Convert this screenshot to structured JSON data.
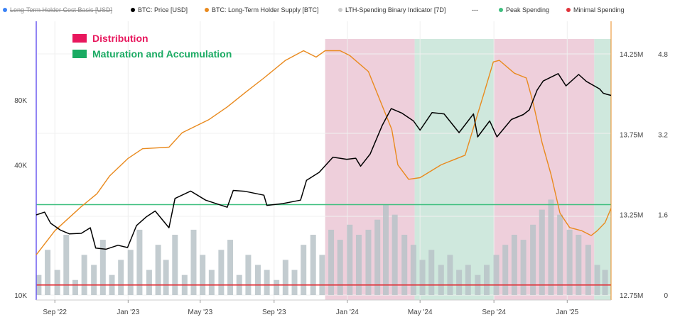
{
  "legend": {
    "items": [
      {
        "label": "Long-Term Holder Cost Basis [USD]",
        "color": "#3b82f6",
        "struck": true
      },
      {
        "label": "BTC: Price [USD]",
        "color": "#000000",
        "struck": false
      },
      {
        "label": "BTC: Long-Term Holder Supply [BTC]",
        "color": "#e98a1e",
        "struck": false
      },
      {
        "label": "LTH-Spending Binary Indicator [7D]",
        "color": "#cccccc",
        "struck": false
      },
      {
        "label": "---",
        "color": "",
        "struck": false
      },
      {
        "label": "Peak Spending",
        "color": "#3fbf7f",
        "struck": false
      },
      {
        "label": "Minimal Spending",
        "color": "#e0343b",
        "struck": false
      }
    ]
  },
  "annotations": {
    "distribution": {
      "label": "Distribution",
      "color": "#e8175d"
    },
    "maturation": {
      "label": "Maturation and Accumulation",
      "color": "#1aab63"
    }
  },
  "colors": {
    "price": "#000000",
    "supply": "#e98a1e",
    "spending_bars": "#b9c3c8",
    "distribution_shade": "#e8bfcf",
    "accumulation_shade": "#bfe0d2",
    "peak_line": "#3fbf7f",
    "minimal_line": "#e0343b",
    "left_axis_line": "#6d5cf0",
    "right_axis_line": "#e98a1e"
  },
  "chart_data": {
    "type": "line",
    "x_range": [
      "2022-08-01",
      "2025-03-15"
    ],
    "x_ticks": [
      {
        "date": "2022-09-01",
        "label": "Sep '22"
      },
      {
        "date": "2023-01-01",
        "label": "Jan '23"
      },
      {
        "date": "2023-05-01",
        "label": "May '23"
      },
      {
        "date": "2023-09-01",
        "label": "Sep '23"
      },
      {
        "date": "2024-01-01",
        "label": "Jan '24"
      },
      {
        "date": "2024-05-01",
        "label": "May '24"
      },
      {
        "date": "2024-09-01",
        "label": "Sep '24"
      },
      {
        "date": "2025-01-01",
        "label": "Jan '25"
      }
    ],
    "left_axis": {
      "scale": "log",
      "ticks": [
        {
          "value": 10000,
          "label": "10K"
        },
        {
          "value": 40000,
          "label": "40K"
        },
        {
          "value": 80000,
          "label": "80K"
        }
      ]
    },
    "right_axis_supply": {
      "ticks": [
        {
          "value": 12750000,
          "label": "12.75M"
        },
        {
          "value": 13250000,
          "label": "13.25M"
        },
        {
          "value": 13750000,
          "label": "13.75M"
        },
        {
          "value": 14250000,
          "label": "14.25M"
        }
      ]
    },
    "right_axis_indicator": {
      "ticks": [
        {
          "value": 0,
          "label": "0"
        },
        {
          "value": 1.6,
          "label": "1.6"
        },
        {
          "value": 3.2,
          "label": "3.2"
        },
        {
          "value": 4.8,
          "label": "4.8"
        }
      ]
    },
    "regions": [
      {
        "type": "distribution",
        "start": "2023-11-25",
        "end": "2024-04-22"
      },
      {
        "type": "accumulation",
        "start": "2024-04-22",
        "end": "2024-09-01"
      },
      {
        "type": "distribution",
        "start": "2024-09-01",
        "end": "2025-02-15"
      },
      {
        "type": "accumulation",
        "start": "2025-02-15",
        "end": "2025-03-15"
      }
    ],
    "series": [
      {
        "name": "BTC: Price [USD]",
        "axis": "left",
        "points": [
          [
            "2022-08-01",
            23500
          ],
          [
            "2022-08-15",
            24200
          ],
          [
            "2022-08-25",
            21500
          ],
          [
            "2022-09-10",
            20000
          ],
          [
            "2022-09-25",
            19200
          ],
          [
            "2022-10-15",
            19300
          ],
          [
            "2022-10-30",
            20500
          ],
          [
            "2022-11-08",
            16500
          ],
          [
            "2022-11-25",
            16300
          ],
          [
            "2022-12-15",
            17000
          ],
          [
            "2022-12-31",
            16600
          ],
          [
            "2023-01-15",
            21000
          ],
          [
            "2023-01-31",
            23000
          ],
          [
            "2023-02-15",
            24500
          ],
          [
            "2023-03-10",
            20500
          ],
          [
            "2023-03-20",
            28000
          ],
          [
            "2023-04-15",
            30300
          ],
          [
            "2023-05-10",
            27500
          ],
          [
            "2023-06-15",
            25500
          ],
          [
            "2023-06-25",
            30500
          ],
          [
            "2023-07-15",
            30200
          ],
          [
            "2023-08-15",
            29000
          ],
          [
            "2023-08-20",
            26000
          ],
          [
            "2023-09-15",
            26500
          ],
          [
            "2023-10-15",
            27500
          ],
          [
            "2023-10-25",
            34000
          ],
          [
            "2023-11-15",
            37000
          ],
          [
            "2023-12-08",
            43500
          ],
          [
            "2023-12-31",
            42500
          ],
          [
            "2024-01-15",
            43000
          ],
          [
            "2024-01-23",
            39500
          ],
          [
            "2024-02-08",
            45000
          ],
          [
            "2024-02-28",
            61000
          ],
          [
            "2024-03-14",
            73000
          ],
          [
            "2024-04-01",
            69500
          ],
          [
            "2024-04-20",
            64000
          ],
          [
            "2024-05-01",
            58000
          ],
          [
            "2024-05-21",
            70000
          ],
          [
            "2024-06-10",
            69000
          ],
          [
            "2024-07-05",
            56500
          ],
          [
            "2024-07-29",
            69000
          ],
          [
            "2024-08-05",
            54000
          ],
          [
            "2024-08-25",
            64000
          ],
          [
            "2024-09-06",
            54000
          ],
          [
            "2024-09-30",
            65000
          ],
          [
            "2024-10-20",
            68500
          ],
          [
            "2024-10-30",
            72000
          ],
          [
            "2024-11-12",
            89000
          ],
          [
            "2024-11-22",
            98000
          ],
          [
            "2024-12-17",
            106000
          ],
          [
            "2024-12-30",
            93000
          ],
          [
            "2025-01-20",
            105000
          ],
          [
            "2025-02-02",
            97500
          ],
          [
            "2025-02-24",
            90000
          ],
          [
            "2025-03-02",
            86000
          ],
          [
            "2025-03-08",
            85000
          ],
          [
            "2025-03-15",
            84000
          ]
        ]
      },
      {
        "name": "BTC: Long-Term Holder Supply [BTC]",
        "axis": "right",
        "points": [
          [
            "2022-08-01",
            13000000
          ],
          [
            "2022-09-01",
            13150000
          ],
          [
            "2022-10-15",
            13300000
          ],
          [
            "2022-11-10",
            13380000
          ],
          [
            "2022-12-01",
            13490000
          ],
          [
            "2023-01-01",
            13600000
          ],
          [
            "2023-01-25",
            13660000
          ],
          [
            "2023-03-10",
            13670000
          ],
          [
            "2023-04-01",
            13760000
          ],
          [
            "2023-05-15",
            13840000
          ],
          [
            "2023-06-15",
            13920000
          ],
          [
            "2023-07-15",
            14010000
          ],
          [
            "2023-08-15",
            14100000
          ],
          [
            "2023-09-20",
            14210000
          ],
          [
            "2023-10-20",
            14270000
          ],
          [
            "2023-11-10",
            14230000
          ],
          [
            "2023-11-25",
            14270000
          ],
          [
            "2023-12-20",
            14270000
          ],
          [
            "2024-01-05",
            14240000
          ],
          [
            "2024-02-05",
            14140000
          ],
          [
            "2024-03-15",
            13780000
          ],
          [
            "2024-03-25",
            13560000
          ],
          [
            "2024-04-12",
            13470000
          ],
          [
            "2024-05-01",
            13480000
          ],
          [
            "2024-06-05",
            13560000
          ],
          [
            "2024-07-15",
            13620000
          ],
          [
            "2024-08-15",
            14000000
          ],
          [
            "2024-08-31",
            14200000
          ],
          [
            "2024-09-10",
            14210000
          ],
          [
            "2024-10-05",
            14130000
          ],
          [
            "2024-10-25",
            14100000
          ],
          [
            "2024-11-05",
            13950000
          ],
          [
            "2024-11-20",
            13700000
          ],
          [
            "2024-12-05",
            13500000
          ],
          [
            "2024-12-20",
            13260000
          ],
          [
            "2025-01-05",
            13170000
          ],
          [
            "2025-01-25",
            13150000
          ],
          [
            "2025-02-10",
            13120000
          ],
          [
            "2025-02-20",
            13150000
          ],
          [
            "2025-03-05",
            13200000
          ],
          [
            "2025-03-15",
            13290000
          ]
        ]
      },
      {
        "name": "LTH-Spending Binary Indicator [7D]",
        "axis": "right_indicator",
        "bars": [
          [
            "2022-08-05",
            0.4
          ],
          [
            "2022-08-20",
            0.9
          ],
          [
            "2022-09-05",
            0.5
          ],
          [
            "2022-09-20",
            1.2
          ],
          [
            "2022-10-05",
            0.3
          ],
          [
            "2022-10-20",
            0.8
          ],
          [
            "2022-11-05",
            0.6
          ],
          [
            "2022-11-20",
            1.1
          ],
          [
            "2022-12-05",
            0.4
          ],
          [
            "2022-12-20",
            0.7
          ],
          [
            "2023-01-05",
            0.9
          ],
          [
            "2023-01-20",
            1.3
          ],
          [
            "2023-02-05",
            0.5
          ],
          [
            "2023-02-20",
            1.0
          ],
          [
            "2023-03-05",
            0.7
          ],
          [
            "2023-03-20",
            1.2
          ],
          [
            "2023-04-05",
            0.4
          ],
          [
            "2023-04-20",
            1.3
          ],
          [
            "2023-05-05",
            0.8
          ],
          [
            "2023-05-20",
            0.5
          ],
          [
            "2023-06-05",
            0.9
          ],
          [
            "2023-06-20",
            1.1
          ],
          [
            "2023-07-05",
            0.4
          ],
          [
            "2023-07-20",
            0.8
          ],
          [
            "2023-08-05",
            0.6
          ],
          [
            "2023-08-20",
            0.5
          ],
          [
            "2023-09-05",
            0.3
          ],
          [
            "2023-09-20",
            0.7
          ],
          [
            "2023-10-05",
            0.5
          ],
          [
            "2023-10-20",
            1.0
          ],
          [
            "2023-11-05",
            1.2
          ],
          [
            "2023-11-20",
            0.8
          ],
          [
            "2023-12-05",
            1.3
          ],
          [
            "2023-12-20",
            1.1
          ],
          [
            "2024-01-05",
            1.4
          ],
          [
            "2024-01-20",
            1.2
          ],
          [
            "2024-02-05",
            1.3
          ],
          [
            "2024-02-20",
            1.5
          ],
          [
            "2024-03-05",
            1.8
          ],
          [
            "2024-03-20",
            1.6
          ],
          [
            "2024-04-05",
            1.2
          ],
          [
            "2024-04-20",
            1.0
          ],
          [
            "2024-05-05",
            0.7
          ],
          [
            "2024-05-20",
            0.9
          ],
          [
            "2024-06-05",
            0.6
          ],
          [
            "2024-06-20",
            0.8
          ],
          [
            "2024-07-05",
            0.5
          ],
          [
            "2024-07-20",
            0.6
          ],
          [
            "2024-08-05",
            0.4
          ],
          [
            "2024-08-20",
            0.6
          ],
          [
            "2024-09-05",
            0.8
          ],
          [
            "2024-09-20",
            1.0
          ],
          [
            "2024-10-05",
            1.2
          ],
          [
            "2024-10-20",
            1.1
          ],
          [
            "2024-11-05",
            1.4
          ],
          [
            "2024-11-20",
            1.7
          ],
          [
            "2024-12-05",
            1.9
          ],
          [
            "2024-12-20",
            1.6
          ],
          [
            "2025-01-05",
            1.3
          ],
          [
            "2025-01-20",
            1.2
          ],
          [
            "2025-02-05",
            1.0
          ],
          [
            "2025-02-20",
            0.6
          ],
          [
            "2025-03-05",
            0.5
          ]
        ]
      }
    ],
    "reference_lines": [
      {
        "name": "Peak Spending",
        "axis": "right_indicator",
        "value": 1.8
      },
      {
        "name": "Minimal Spending",
        "axis": "right_indicator",
        "value": 0.2
      }
    ]
  }
}
